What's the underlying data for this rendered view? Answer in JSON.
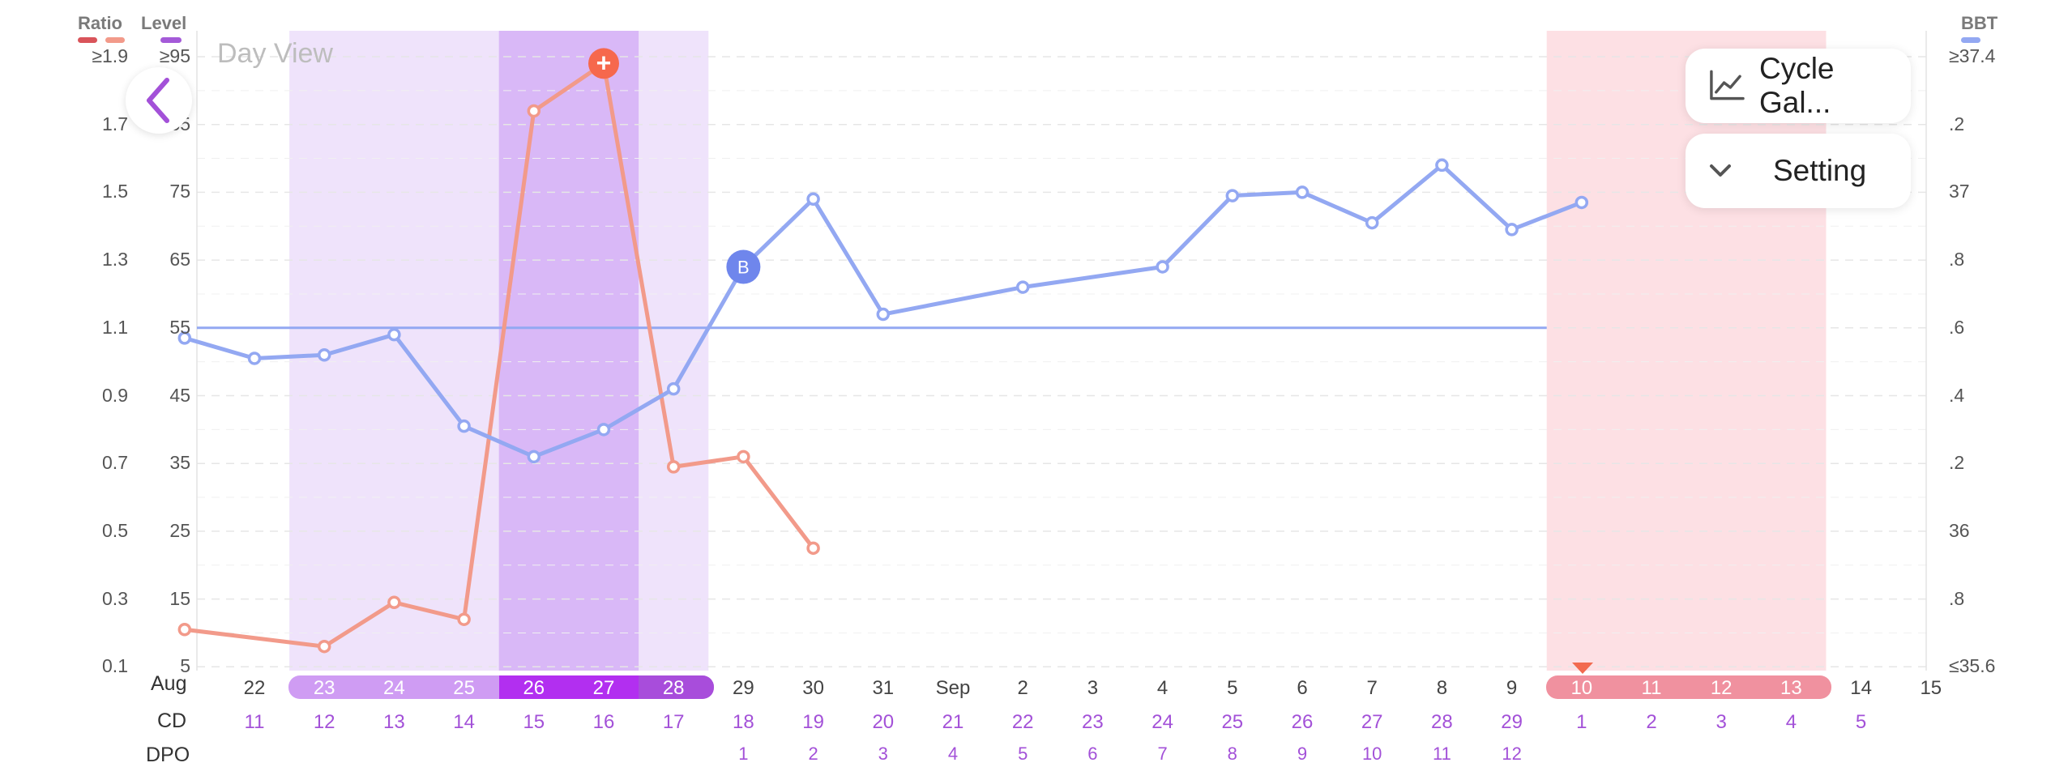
{
  "legend": {
    "ratio_label": "Ratio",
    "level_label": "Level",
    "bbt_label": "BBT",
    "ratio_colors": [
      "#d9545a",
      "#f29a8a"
    ],
    "level_color": "#a45ad8",
    "bbt_color": "#93a8f2"
  },
  "axes": {
    "ratio_ticks": [
      "≥1.9",
      "1.7",
      "1.5",
      "1.3",
      "1.1",
      "0.9",
      "0.7",
      "0.5",
      "0.3",
      "0.1"
    ],
    "level_ticks": [
      "≥95",
      "85",
      "75",
      "65",
      "55",
      "45",
      "35",
      "25",
      "15",
      "5"
    ],
    "bbt_ticks": [
      "≥37.4",
      ".2",
      "37",
      ".8",
      ".6",
      ".4",
      ".2",
      "36",
      ".8",
      "≤35.6"
    ]
  },
  "header": {
    "day_view_label": "Day View"
  },
  "buttons": {
    "cycle_gallery": "Cycle Gal...",
    "setting": "Setting"
  },
  "rows": {
    "cd_label": "CD",
    "dpo_label": "DPO",
    "month_aug": "Aug"
  },
  "dates": [
    "22",
    "23",
    "24",
    "25",
    "26",
    "27",
    "28",
    "29",
    "30",
    "31",
    "Sep",
    "2",
    "3",
    "4",
    "5",
    "6",
    "7",
    "8",
    "9",
    "10",
    "11",
    "12",
    "13",
    "14",
    "15"
  ],
  "cd": [
    "11",
    "12",
    "13",
    "14",
    "15",
    "16",
    "17",
    "18",
    "19",
    "20",
    "21",
    "22",
    "23",
    "24",
    "25",
    "26",
    "27",
    "28",
    "29",
    "1",
    "2",
    "3",
    "4",
    "5"
  ],
  "dpo": [
    "1",
    "2",
    "3",
    "4",
    "5",
    "6",
    "7",
    "8",
    "9",
    "10",
    "11",
    "12"
  ],
  "chart_data": {
    "type": "line",
    "x": [
      "Aug 21",
      "Aug 22",
      "Aug 23",
      "Aug 24",
      "Aug 25",
      "Aug 26",
      "Aug 27",
      "Aug 28",
      "Aug 29",
      "Aug 30",
      "Aug 31",
      "Sep 1",
      "Sep 2",
      "Sep 3",
      "Sep 4",
      "Sep 5",
      "Sep 6",
      "Sep 7",
      "Sep 8",
      "Sep 9",
      "Sep 10",
      "Sep 11",
      "Sep 12",
      "Sep 13",
      "Sep 14",
      "Sep 15"
    ],
    "series": [
      {
        "name": "BBT",
        "unit": "°C",
        "points": [
          {
            "x": "Aug 21",
            "y": 36.57
          },
          {
            "x": "Aug 22",
            "y": 36.51
          },
          {
            "x": "Aug 23",
            "y": 36.52
          },
          {
            "x": "Aug 24",
            "y": 36.58
          },
          {
            "x": "Aug 25",
            "y": 36.31
          },
          {
            "x": "Aug 26",
            "y": 36.22
          },
          {
            "x": "Aug 27",
            "y": 36.3
          },
          {
            "x": "Aug 28",
            "y": 36.42
          },
          {
            "x": "Aug 29",
            "y": 36.78
          },
          {
            "x": "Aug 30",
            "y": 36.98
          },
          {
            "x": "Aug 31",
            "y": 36.64
          },
          {
            "x": "Sep 2",
            "y": 36.72
          },
          {
            "x": "Sep 4",
            "y": 36.78
          },
          {
            "x": "Sep 5",
            "y": 36.99
          },
          {
            "x": "Sep 6",
            "y": 37.0
          },
          {
            "x": "Sep 7",
            "y": 36.91
          },
          {
            "x": "Sep 8",
            "y": 37.08
          },
          {
            "x": "Sep 9",
            "y": 36.89
          },
          {
            "x": "Sep 10",
            "y": 36.97
          }
        ]
      },
      {
        "name": "Ratio",
        "points": [
          {
            "x": "Aug 21",
            "y": 0.21
          },
          {
            "x": "Aug 23",
            "y": 0.16
          },
          {
            "x": "Aug 24",
            "y": 0.29
          },
          {
            "x": "Aug 25",
            "y": 0.24
          },
          {
            "x": "Aug 26",
            "y": 1.74
          },
          {
            "x": "Aug 27",
            "y": 1.88
          },
          {
            "x": "Aug 28",
            "y": 0.69
          },
          {
            "x": "Aug 29",
            "y": 0.72
          },
          {
            "x": "Aug 30",
            "y": 0.45
          }
        ]
      }
    ],
    "coverline_bbt": 36.6,
    "ylim_bbt": [
      35.6,
      37.4
    ],
    "ylim_ratio": [
      0.1,
      1.9
    ],
    "ylim_level": [
      5,
      95
    ],
    "markers": [
      {
        "label": "B",
        "x": "Aug 29",
        "series": "BBT"
      },
      {
        "label": "+",
        "x": "Aug 27",
        "series": "Ratio"
      }
    ],
    "bands": [
      {
        "from": "Aug 23",
        "to": "Aug 28",
        "kind": "fertile",
        "color": "#efe3fb"
      },
      {
        "from": "Aug 26",
        "to": "Aug 27",
        "kind": "peak",
        "color": "#d9b8f7"
      },
      {
        "from": "Sep 10",
        "to": "Sep 13",
        "kind": "period",
        "color": "#fde0e4"
      }
    ]
  }
}
